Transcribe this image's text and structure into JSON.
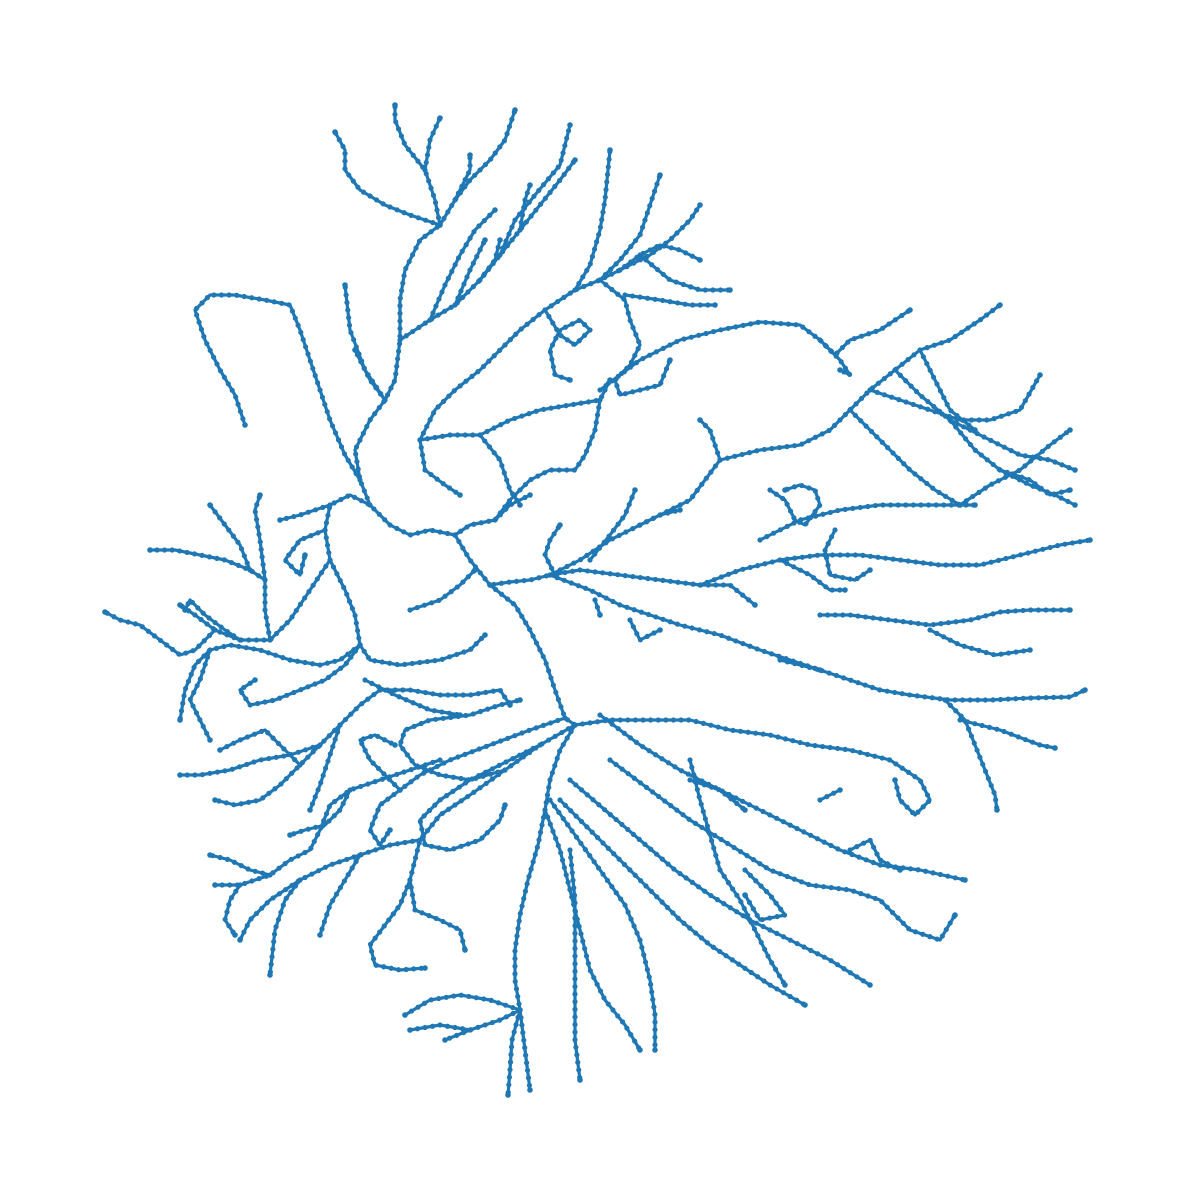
{
  "colors": {
    "background": "#ffffff",
    "node": "#1f77b4"
  },
  "figure": {
    "kind": "branching-tree-network",
    "marker": "circle-dots-along-edges",
    "axes_visible": false,
    "text_labels": []
  }
}
